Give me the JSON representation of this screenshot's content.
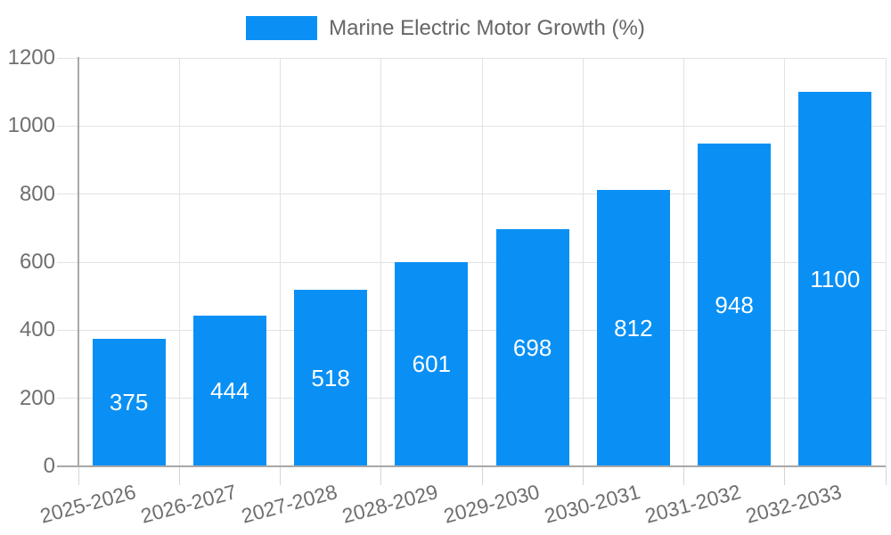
{
  "colors": {
    "bar": "#0a90f5",
    "bar_label": "#ffffff",
    "legend_text": "#666666",
    "axis_label": "#6f6f6f",
    "grid": "#e2e2e2",
    "axis_line": "#a8a8a8",
    "x_tick": "#d5d5d5",
    "background": "#ffffff"
  },
  "chart_data": {
    "type": "bar",
    "title": "Marine Electric Motor Growth (%)",
    "categories": [
      "2025-2026",
      "2026-2027",
      "2027-2028",
      "2028-2029",
      "2029-2030",
      "2030-2031",
      "2031-2032",
      "2032-2033"
    ],
    "values": [
      375,
      444,
      518,
      601,
      698,
      812,
      948,
      1100
    ],
    "xlabel": "",
    "ylabel": "",
    "ylim": [
      0,
      1200
    ],
    "ytick_step": 200,
    "yticks": [
      0,
      200,
      400,
      600,
      800,
      1000,
      1200
    ],
    "grid": true,
    "legend_position": "top-center",
    "value_labels": "inside-center"
  }
}
